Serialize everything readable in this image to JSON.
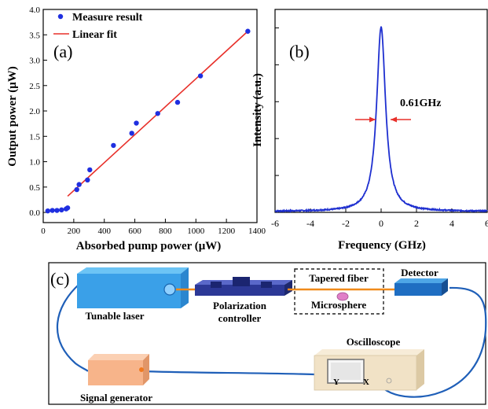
{
  "panel_a": {
    "label": "(a)",
    "legend": {
      "measure": "Measure result",
      "fit": "Linear fit"
    }
  },
  "panel_b": {
    "label": "(b)",
    "annotation": "0.61GHz"
  },
  "panel_c": {
    "label": "(c)",
    "labels": {
      "tunable_laser": "Tunable laser",
      "polarization_1": "Polarization",
      "polarization_2": "controller",
      "tapered_fiber": "Tapered fiber",
      "microsphere": "Microsphere",
      "detector": "Detector",
      "oscilloscope": "Oscilloscope",
      "signal_generator": "Signal generator",
      "port_y": "Y",
      "port_x": "X"
    },
    "colors": {
      "laser_blue": "#3aa0e8",
      "cable_blue": "#1f5fb8",
      "signal_orange": "#f7b48a",
      "oscilloscope_beige": "#f1e2c6",
      "microsphere_pink": "#e07fc8"
    }
  },
  "chart_data": [
    {
      "type": "scatter",
      "xlabel": "Absorbed pump power (μW)",
      "ylabel": "Output power (μW)",
      "xlim": [
        0,
        1400
      ],
      "ylim": [
        -0.2,
        4.0
      ],
      "xticks": [
        "0",
        "200",
        "400",
        "600",
        "800",
        "1000",
        "1200",
        "1400"
      ],
      "yticks": [
        "0.0",
        "0.5",
        "1.0",
        "1.5",
        "2.0",
        "2.5",
        "3.0",
        "3.5",
        "4.0"
      ],
      "legend_position": "top-left",
      "series": [
        {
          "name": "Measure result",
          "kind": "points",
          "color": "#1f2fe0",
          "x": [
            30,
            60,
            90,
            120,
            150,
            160,
            220,
            235,
            290,
            305,
            460,
            580,
            610,
            750,
            880,
            1030,
            1340
          ],
          "y": [
            0.03,
            0.04,
            0.04,
            0.05,
            0.07,
            0.09,
            0.45,
            0.55,
            0.64,
            0.84,
            1.32,
            1.56,
            1.76,
            1.95,
            2.17,
            2.69,
            3.57
          ]
        },
        {
          "name": "Linear fit",
          "kind": "line",
          "color": "#e8302a",
          "x": [
            160,
            1340
          ],
          "y": [
            0.32,
            3.57
          ]
        }
      ]
    },
    {
      "type": "line",
      "xlabel": "Frequency (GHz)",
      "ylabel": "Intensity (a.u.)",
      "xlim": [
        -6,
        6
      ],
      "xticks": [
        "-6",
        "-4",
        "-2",
        "0",
        "2",
        "4",
        "6"
      ],
      "ylim": [
        0,
        1.1
      ],
      "y_tick_labels_shown": false,
      "peak_center_ghz": 0,
      "fwhm_ghz": 0.61,
      "baseline": 0.005,
      "series": [
        {
          "color": "#1e2fd0"
        }
      ]
    }
  ]
}
